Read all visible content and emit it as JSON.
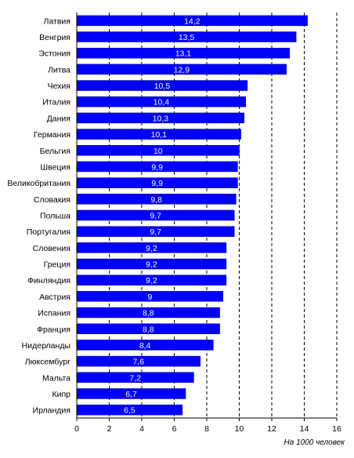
{
  "chart_data": {
    "type": "bar",
    "orientation": "horizontal",
    "categories": [
      "Латвия",
      "Венгрия",
      "Эстония",
      "Литва",
      "Чехия",
      "Италия",
      "Дания",
      "Германия",
      "Бельгия",
      "Швеция",
      "Великобритания",
      "Словакия",
      "Польша",
      "Португалия",
      "Словения",
      "Греция",
      "Финляндия",
      "Австрия",
      "Испания",
      "Франция",
      "Нидерланды",
      "Люксембург",
      "Мальта",
      "Кипр",
      "Ирландия"
    ],
    "values": [
      14.2,
      13.5,
      13.1,
      12.9,
      10.5,
      10.4,
      10.3,
      10.1,
      10,
      9.9,
      9.9,
      9.8,
      9.7,
      9.7,
      9.2,
      9.2,
      9.2,
      9,
      8.8,
      8.8,
      8.4,
      7.6,
      7.2,
      6.7,
      6.5
    ],
    "value_labels": [
      "14,2",
      "13,5",
      "13,1",
      "12,9",
      "10,5",
      "10,4",
      "10,3",
      "10,1",
      "10",
      "9,9",
      "9,9",
      "9,8",
      "9,7",
      "9,7",
      "9,2",
      "9,2",
      "9,2",
      "9",
      "8,8",
      "8,8",
      "8,4",
      "7,6",
      "7,2",
      "6,7",
      "6,5"
    ],
    "xlim": [
      0,
      16
    ],
    "xticks": [
      "0",
      "2",
      "4",
      "6",
      "8",
      "10",
      "12",
      "14",
      "16"
    ],
    "xlabel": "На 1000 человек",
    "grid": "vertical dashed",
    "bar_color": "#0000ff"
  }
}
